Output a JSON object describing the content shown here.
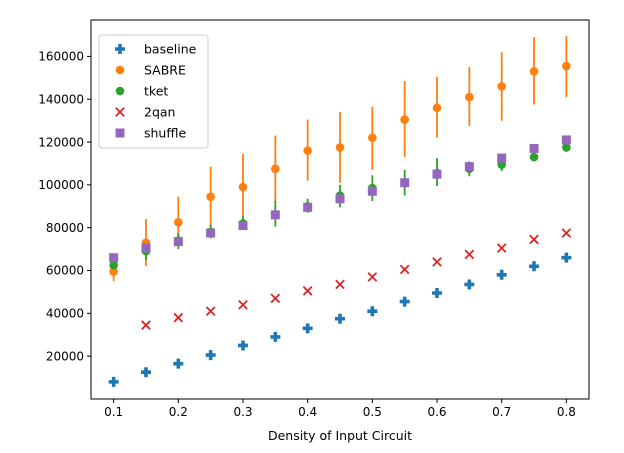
{
  "chart_data": {
    "type": "scatter",
    "title": "",
    "xlabel": "Density of Input Circuit",
    "ylabel": "",
    "xlim": [
      0.065,
      0.835
    ],
    "ylim": [
      0,
      177000
    ],
    "xticks": [
      0.1,
      0.2,
      0.3,
      0.4,
      0.5,
      0.6,
      0.7,
      0.8
    ],
    "xtick_labels": [
      "0.1",
      "0.2",
      "0.3",
      "0.4",
      "0.5",
      "0.6",
      "0.7",
      "0.8"
    ],
    "yticks": [
      20000,
      40000,
      60000,
      80000,
      100000,
      120000,
      140000,
      160000
    ],
    "ytick_labels": [
      "20000",
      "40000",
      "60000",
      "80000",
      "100000",
      "120000",
      "140000",
      "160000"
    ],
    "legend_position": "top-left",
    "x": [
      0.1,
      0.15,
      0.2,
      0.25,
      0.3,
      0.35,
      0.4,
      0.45,
      0.5,
      0.55,
      0.6,
      0.65,
      0.7,
      0.75,
      0.8
    ],
    "series": [
      {
        "name": "baseline",
        "marker": "plus",
        "color": "#1f77b4",
        "values": [
          8000,
          12500,
          16500,
          20500,
          25000,
          29000,
          33000,
          37500,
          41000,
          45500,
          49500,
          53500,
          58000,
          62000,
          66000
        ],
        "errors": null
      },
      {
        "name": "SABRE",
        "marker": "circle",
        "color": "#ff7f0e",
        "values": [
          59500,
          73000,
          82500,
          94500,
          99000,
          107500,
          116000,
          117500,
          122000,
          130500,
          136000,
          141000,
          146000,
          153000,
          155500
        ],
        "errors": [
          [
            55000,
            64000
          ],
          [
            62000,
            84000
          ],
          [
            72000,
            94500
          ],
          [
            80000,
            108500
          ],
          [
            84000,
            114500
          ],
          [
            92000,
            123000
          ],
          [
            102000,
            130500
          ],
          [
            101000,
            134000
          ],
          [
            107000,
            136500
          ],
          [
            113000,
            148500
          ],
          [
            122000,
            150500
          ],
          [
            127500,
            155000
          ],
          [
            130000,
            162000
          ],
          [
            137500,
            169000
          ],
          [
            141000,
            169500
          ]
        ]
      },
      {
        "name": "tket",
        "marker": "circle",
        "color": "#2ca02c",
        "values": [
          62500,
          69000,
          74000,
          78000,
          82000,
          86000,
          90000,
          95000,
          98500,
          101000,
          105500,
          107500,
          109500,
          113000,
          117500
        ],
        "errors": [
          [
            59500,
            65500
          ],
          [
            65000,
            72500
          ],
          [
            70000,
            77500
          ],
          [
            75000,
            81500
          ],
          [
            79000,
            85500
          ],
          [
            80500,
            92500
          ],
          [
            87000,
            93500
          ],
          [
            89500,
            100000
          ],
          [
            92500,
            104500
          ],
          [
            95000,
            107000
          ],
          [
            99500,
            112500
          ],
          [
            104000,
            111000
          ],
          [
            106500,
            112500
          ],
          [
            111000,
            115000
          ],
          [
            115500,
            120000
          ]
        ]
      },
      {
        "name": "2qan",
        "marker": "x",
        "color": "#d62728",
        "values": [
          null,
          34500,
          38000,
          41000,
          44000,
          47000,
          50500,
          53500,
          57000,
          60500,
          64000,
          67500,
          70500,
          74500,
          77500
        ],
        "errors": null
      },
      {
        "name": "shuffle",
        "marker": "square",
        "color": "#9467bd",
        "values": [
          66000,
          70500,
          73500,
          77500,
          81000,
          86000,
          89500,
          93500,
          97000,
          101000,
          105000,
          108500,
          112500,
          117000,
          121000
        ],
        "errors": null
      }
    ]
  }
}
